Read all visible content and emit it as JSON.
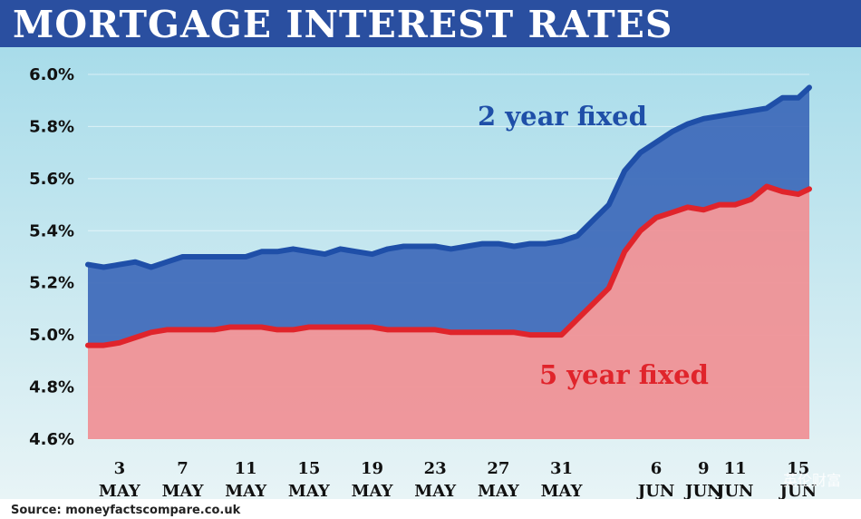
{
  "header": {
    "title": "MORTGAGE INTEREST RATES"
  },
  "footer": {
    "source": "Source: moneyfactscompare.co.uk",
    "watermark": "英伦财富"
  },
  "colors": {
    "title_bg": "#2a4fa0",
    "two_year": "#1f4fa8",
    "five_year": "#e0242b",
    "two_year_fill": "#3a66b8",
    "five_year_fill": "#f08f94",
    "sky_top": "#a8dcea",
    "sky_bottom": "#e8f4f6"
  },
  "chart_data": {
    "type": "area",
    "ylim": [
      4.6,
      6.0
    ],
    "y_ticks": [
      "6.0%",
      "5.8%",
      "5.6%",
      "5.4%",
      "5.2%",
      "5.0%",
      "4.8%",
      "4.6%"
    ],
    "y_tick_values": [
      6.0,
      5.8,
      5.6,
      5.4,
      5.2,
      5.0,
      4.8,
      4.6
    ],
    "x_ticks": [
      {
        "x": 3,
        "day": "3",
        "month": "MAY"
      },
      {
        "x": 7,
        "day": "7",
        "month": "MAY"
      },
      {
        "x": 11,
        "day": "11",
        "month": "MAY"
      },
      {
        "x": 15,
        "day": "15",
        "month": "MAY"
      },
      {
        "x": 19,
        "day": "19",
        "month": "MAY"
      },
      {
        "x": 23,
        "day": "23",
        "month": "MAY"
      },
      {
        "x": 27,
        "day": "27",
        "month": "MAY"
      },
      {
        "x": 31,
        "day": "31",
        "month": "MAY"
      },
      {
        "x": 37,
        "day": "6",
        "month": "JUN"
      },
      {
        "x": 40,
        "day": "9",
        "month": "JUN"
      },
      {
        "x": 42,
        "day": "11",
        "month": "JUN"
      },
      {
        "x": 46,
        "day": "15",
        "month": "JUN"
      }
    ],
    "xlim": [
      1,
      46.7
    ],
    "series": [
      {
        "name": "2 year fixed",
        "x": [
          1,
          2,
          3,
          4,
          5,
          6,
          7,
          8,
          9,
          10,
          11,
          12,
          13,
          14,
          15,
          16,
          17,
          18,
          19,
          20,
          21,
          22,
          23,
          24,
          25,
          26,
          27,
          28,
          29,
          30,
          31,
          32,
          33,
          34,
          35,
          36,
          37,
          38,
          39,
          40,
          41,
          42,
          43,
          44,
          45,
          46,
          46.7
        ],
        "values": [
          5.27,
          5.26,
          5.27,
          5.28,
          5.26,
          5.28,
          5.3,
          5.3,
          5.3,
          5.3,
          5.3,
          5.32,
          5.32,
          5.33,
          5.32,
          5.31,
          5.33,
          5.32,
          5.31,
          5.33,
          5.34,
          5.34,
          5.34,
          5.33,
          5.34,
          5.35,
          5.35,
          5.34,
          5.35,
          5.35,
          5.36,
          5.38,
          5.44,
          5.5,
          5.63,
          5.7,
          5.74,
          5.78,
          5.81,
          5.83,
          5.84,
          5.85,
          5.86,
          5.87,
          5.91,
          5.91,
          5.95
        ]
      },
      {
        "name": "5 year fixed",
        "x": [
          1,
          2,
          3,
          4,
          5,
          6,
          7,
          8,
          9,
          10,
          11,
          12,
          13,
          14,
          15,
          16,
          17,
          18,
          19,
          20,
          21,
          22,
          23,
          24,
          25,
          26,
          27,
          28,
          29,
          30,
          31,
          32,
          33,
          34,
          35,
          36,
          37,
          38,
          39,
          40,
          41,
          42,
          43,
          44,
          45,
          46,
          46.7
        ],
        "values": [
          4.96,
          4.96,
          4.97,
          4.99,
          5.01,
          5.02,
          5.02,
          5.02,
          5.02,
          5.03,
          5.03,
          5.03,
          5.02,
          5.02,
          5.03,
          5.03,
          5.03,
          5.03,
          5.03,
          5.02,
          5.02,
          5.02,
          5.02,
          5.01,
          5.01,
          5.01,
          5.01,
          5.01,
          5.0,
          5.0,
          5.0,
          5.06,
          5.12,
          5.18,
          5.32,
          5.4,
          5.45,
          5.47,
          5.49,
          5.48,
          5.5,
          5.5,
          5.52,
          5.57,
          5.55,
          5.54,
          5.56
        ]
      }
    ]
  }
}
